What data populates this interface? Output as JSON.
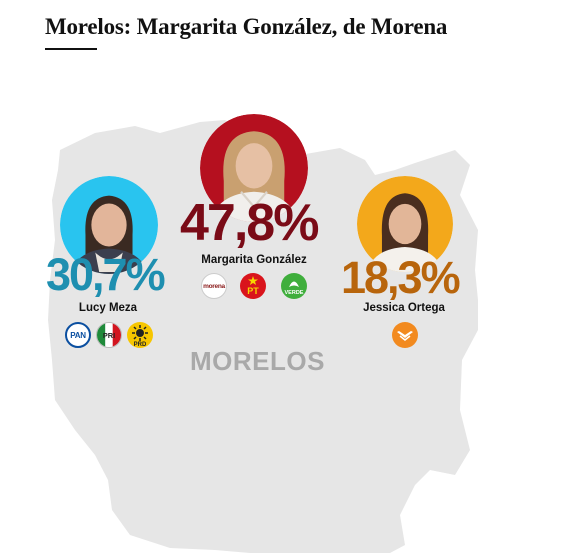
{
  "headline": "Morelos: Margarita González, de Morena",
  "region": "MORELOS",
  "candidates": [
    {
      "name": "Lucy Meza",
      "percent": "30,7%",
      "color": "#1e8fb0",
      "ring": "#29c4ef",
      "parties": [
        {
          "icon": "pan-logo-icon",
          "label": "PAN"
        },
        {
          "icon": "pri-logo-icon",
          "label": "PRI"
        },
        {
          "icon": "prd-logo-icon",
          "label": "PRD"
        }
      ]
    },
    {
      "name": "Margarita González",
      "percent": "47,8%",
      "color": "#7a0b17",
      "ring": "#b5101f",
      "parties": [
        {
          "icon": "morena-logo-icon",
          "label": "morena"
        },
        {
          "icon": "pt-logo-icon",
          "label": "PT"
        },
        {
          "icon": "verde-logo-icon",
          "label": "VERDE"
        }
      ]
    },
    {
      "name": "Jessica Ortega",
      "percent": "18,3%",
      "color": "#b8650c",
      "ring": "#f3a81b",
      "parties": [
        {
          "icon": "movimiento-ciudadano-logo-icon",
          "label": ""
        }
      ]
    }
  ]
}
